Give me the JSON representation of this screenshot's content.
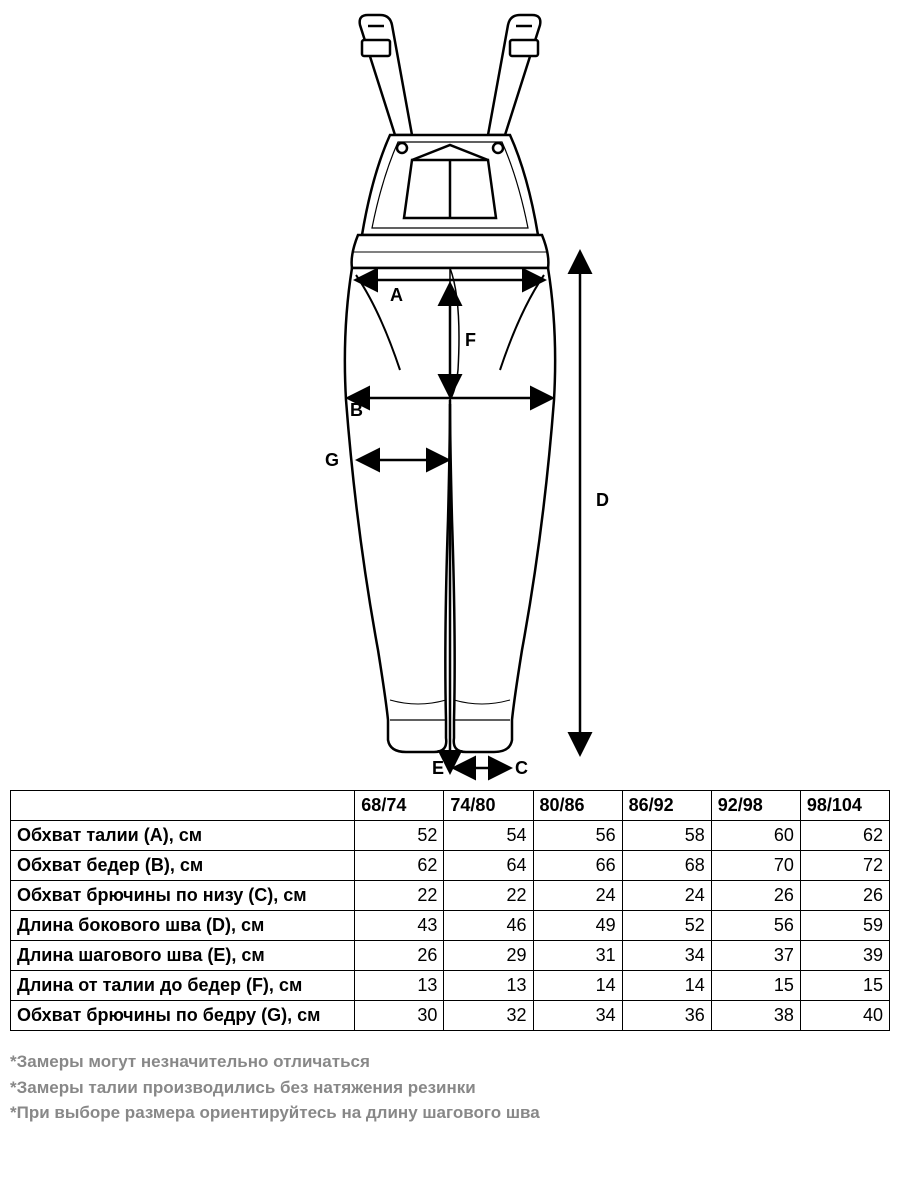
{
  "diagram": {
    "labels": {
      "A": "A",
      "B": "B",
      "C": "C",
      "D": "D",
      "E": "E",
      "F": "F",
      "G": "G"
    },
    "stroke_color": "#000000",
    "fill_color": "#ffffff"
  },
  "table": {
    "columns": [
      "",
      "68/74",
      "74/80",
      "80/86",
      "86/92",
      "92/98",
      "98/104"
    ],
    "rows": [
      {
        "label": "Обхват талии (A), см",
        "values": [
          52,
          54,
          56,
          58,
          60,
          62
        ]
      },
      {
        "label": "Обхват бедер (B), см",
        "values": [
          62,
          64,
          66,
          68,
          70,
          72
        ]
      },
      {
        "label": "Обхват брючины по низу (C), см",
        "values": [
          22,
          22,
          24,
          24,
          26,
          26
        ]
      },
      {
        "label": "Длина бокового шва (D), см",
        "values": [
          43,
          46,
          49,
          52,
          56,
          59
        ]
      },
      {
        "label": "Длина шагового шва (E), см",
        "values": [
          26,
          29,
          31,
          34,
          37,
          39
        ]
      },
      {
        "label": "Длина от талии до бедер (F), см",
        "values": [
          13,
          13,
          14,
          14,
          15,
          15
        ]
      },
      {
        "label": "Обхват брючины по бедру (G), см",
        "values": [
          30,
          32,
          34,
          36,
          38,
          40
        ]
      }
    ],
    "border_color": "#000000",
    "header_fontweight": 700,
    "cell_fontsize": 18
  },
  "notes": [
    "*Замеры могут незначительно отличаться",
    "*Замеры талии производились без натяжения резинки",
    "*При выборе размера ориентируйтесь на длину шагового шва"
  ],
  "notes_color": "#888888"
}
